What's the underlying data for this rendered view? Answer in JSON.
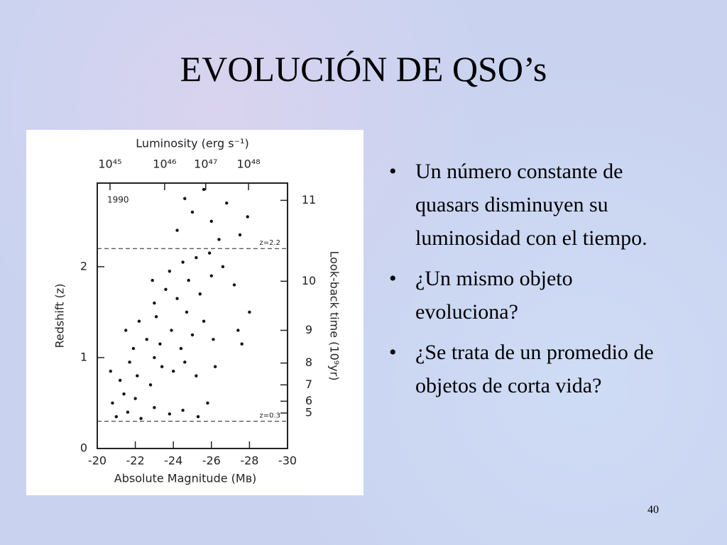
{
  "title": "EVOLUCIÓN DE QSO’s",
  "bullets": [
    "Un número constante de quasars disminuyen su luminosidad con el tiempo.",
    "¿Un mismo objeto evoluciona?",
    "¿Se trata de un promedio de objetos de corta vida?"
  ],
  "page_number": "40",
  "chart_data": {
    "type": "scatter",
    "x_label": "Absolute Magnitude (Mʙ)",
    "y_label": "Redshift (z)",
    "annotation": "1990",
    "xlim": [
      -20,
      -30
    ],
    "xticks": [
      -20,
      -22,
      -24,
      -26,
      -28,
      -30
    ],
    "ylim": [
      0,
      2.92
    ],
    "yticks": [
      0,
      1,
      2
    ],
    "reference_lines": [
      {
        "value": 2.2,
        "label": "z=2.2"
      },
      {
        "value": 0.3,
        "label": "z=0.3"
      }
    ],
    "top_axis": {
      "label": "Luminosity (erg s⁻¹)",
      "ticks": [
        {
          "value": 1e+45,
          "label": "10⁴⁵"
        },
        {
          "value": 1e+46,
          "label": "10⁴⁶"
        },
        {
          "value": 1e+47,
          "label": "10⁴⁷"
        },
        {
          "value": 1e+48,
          "label": "10⁴⁸"
        }
      ],
      "magnitude_at_tick": [
        -20.67,
        -23.54,
        -25.7,
        -27.95
      ]
    },
    "right_axis": {
      "label": "Look-back time (10⁹yr)",
      "ticks": [
        11,
        10,
        9,
        8,
        7,
        6,
        5
      ],
      "redshift_at_tick": [
        2.73,
        1.84,
        1.3,
        0.94,
        0.7,
        0.52,
        0.39
      ]
    },
    "color": "#111111",
    "x": [
      -21.0,
      -21.6,
      -22.3,
      -23.0,
      -23.8,
      -24.5,
      -25.3,
      -25.8,
      -22.0,
      -21.4,
      -20.8,
      -21.2,
      -22.1,
      -22.8,
      -23.4,
      -24.0,
      -24.6,
      -25.2,
      -21.7,
      -23.0,
      -26.2,
      -20.7,
      -21.9,
      -22.6,
      -23.3,
      -23.9,
      -24.4,
      -25.0,
      -25.6,
      -22.2,
      -23.1,
      -24.7,
      -26.1,
      -27.4,
      -21.5,
      -23.0,
      -23.6,
      -24.2,
      -24.8,
      -25.4,
      -26.0,
      -26.6,
      -24.5,
      -25.2,
      -23.8,
      -22.9,
      -27.2,
      -25.9,
      -28.0,
      -27.6,
      -24.2,
      -25.0,
      -26.0,
      -26.8,
      -27.5,
      -25.6,
      -24.6,
      -27.9,
      -26.4
    ],
    "values": [
      0.35,
      0.4,
      0.33,
      0.45,
      0.38,
      0.42,
      0.35,
      0.5,
      0.55,
      0.6,
      0.5,
      0.75,
      0.8,
      0.7,
      0.9,
      0.85,
      0.95,
      0.8,
      0.95,
      1.0,
      0.9,
      0.85,
      1.1,
      1.2,
      1.15,
      1.3,
      1.1,
      1.25,
      1.4,
      1.4,
      1.45,
      1.5,
      1.2,
      1.3,
      1.3,
      1.6,
      1.75,
      1.65,
      1.85,
      1.7,
      1.9,
      2.0,
      2.05,
      2.1,
      1.95,
      1.85,
      1.8,
      2.15,
      1.5,
      1.15,
      2.4,
      2.6,
      2.5,
      2.7,
      2.35,
      2.85,
      2.75,
      2.55,
      2.3
    ]
  }
}
